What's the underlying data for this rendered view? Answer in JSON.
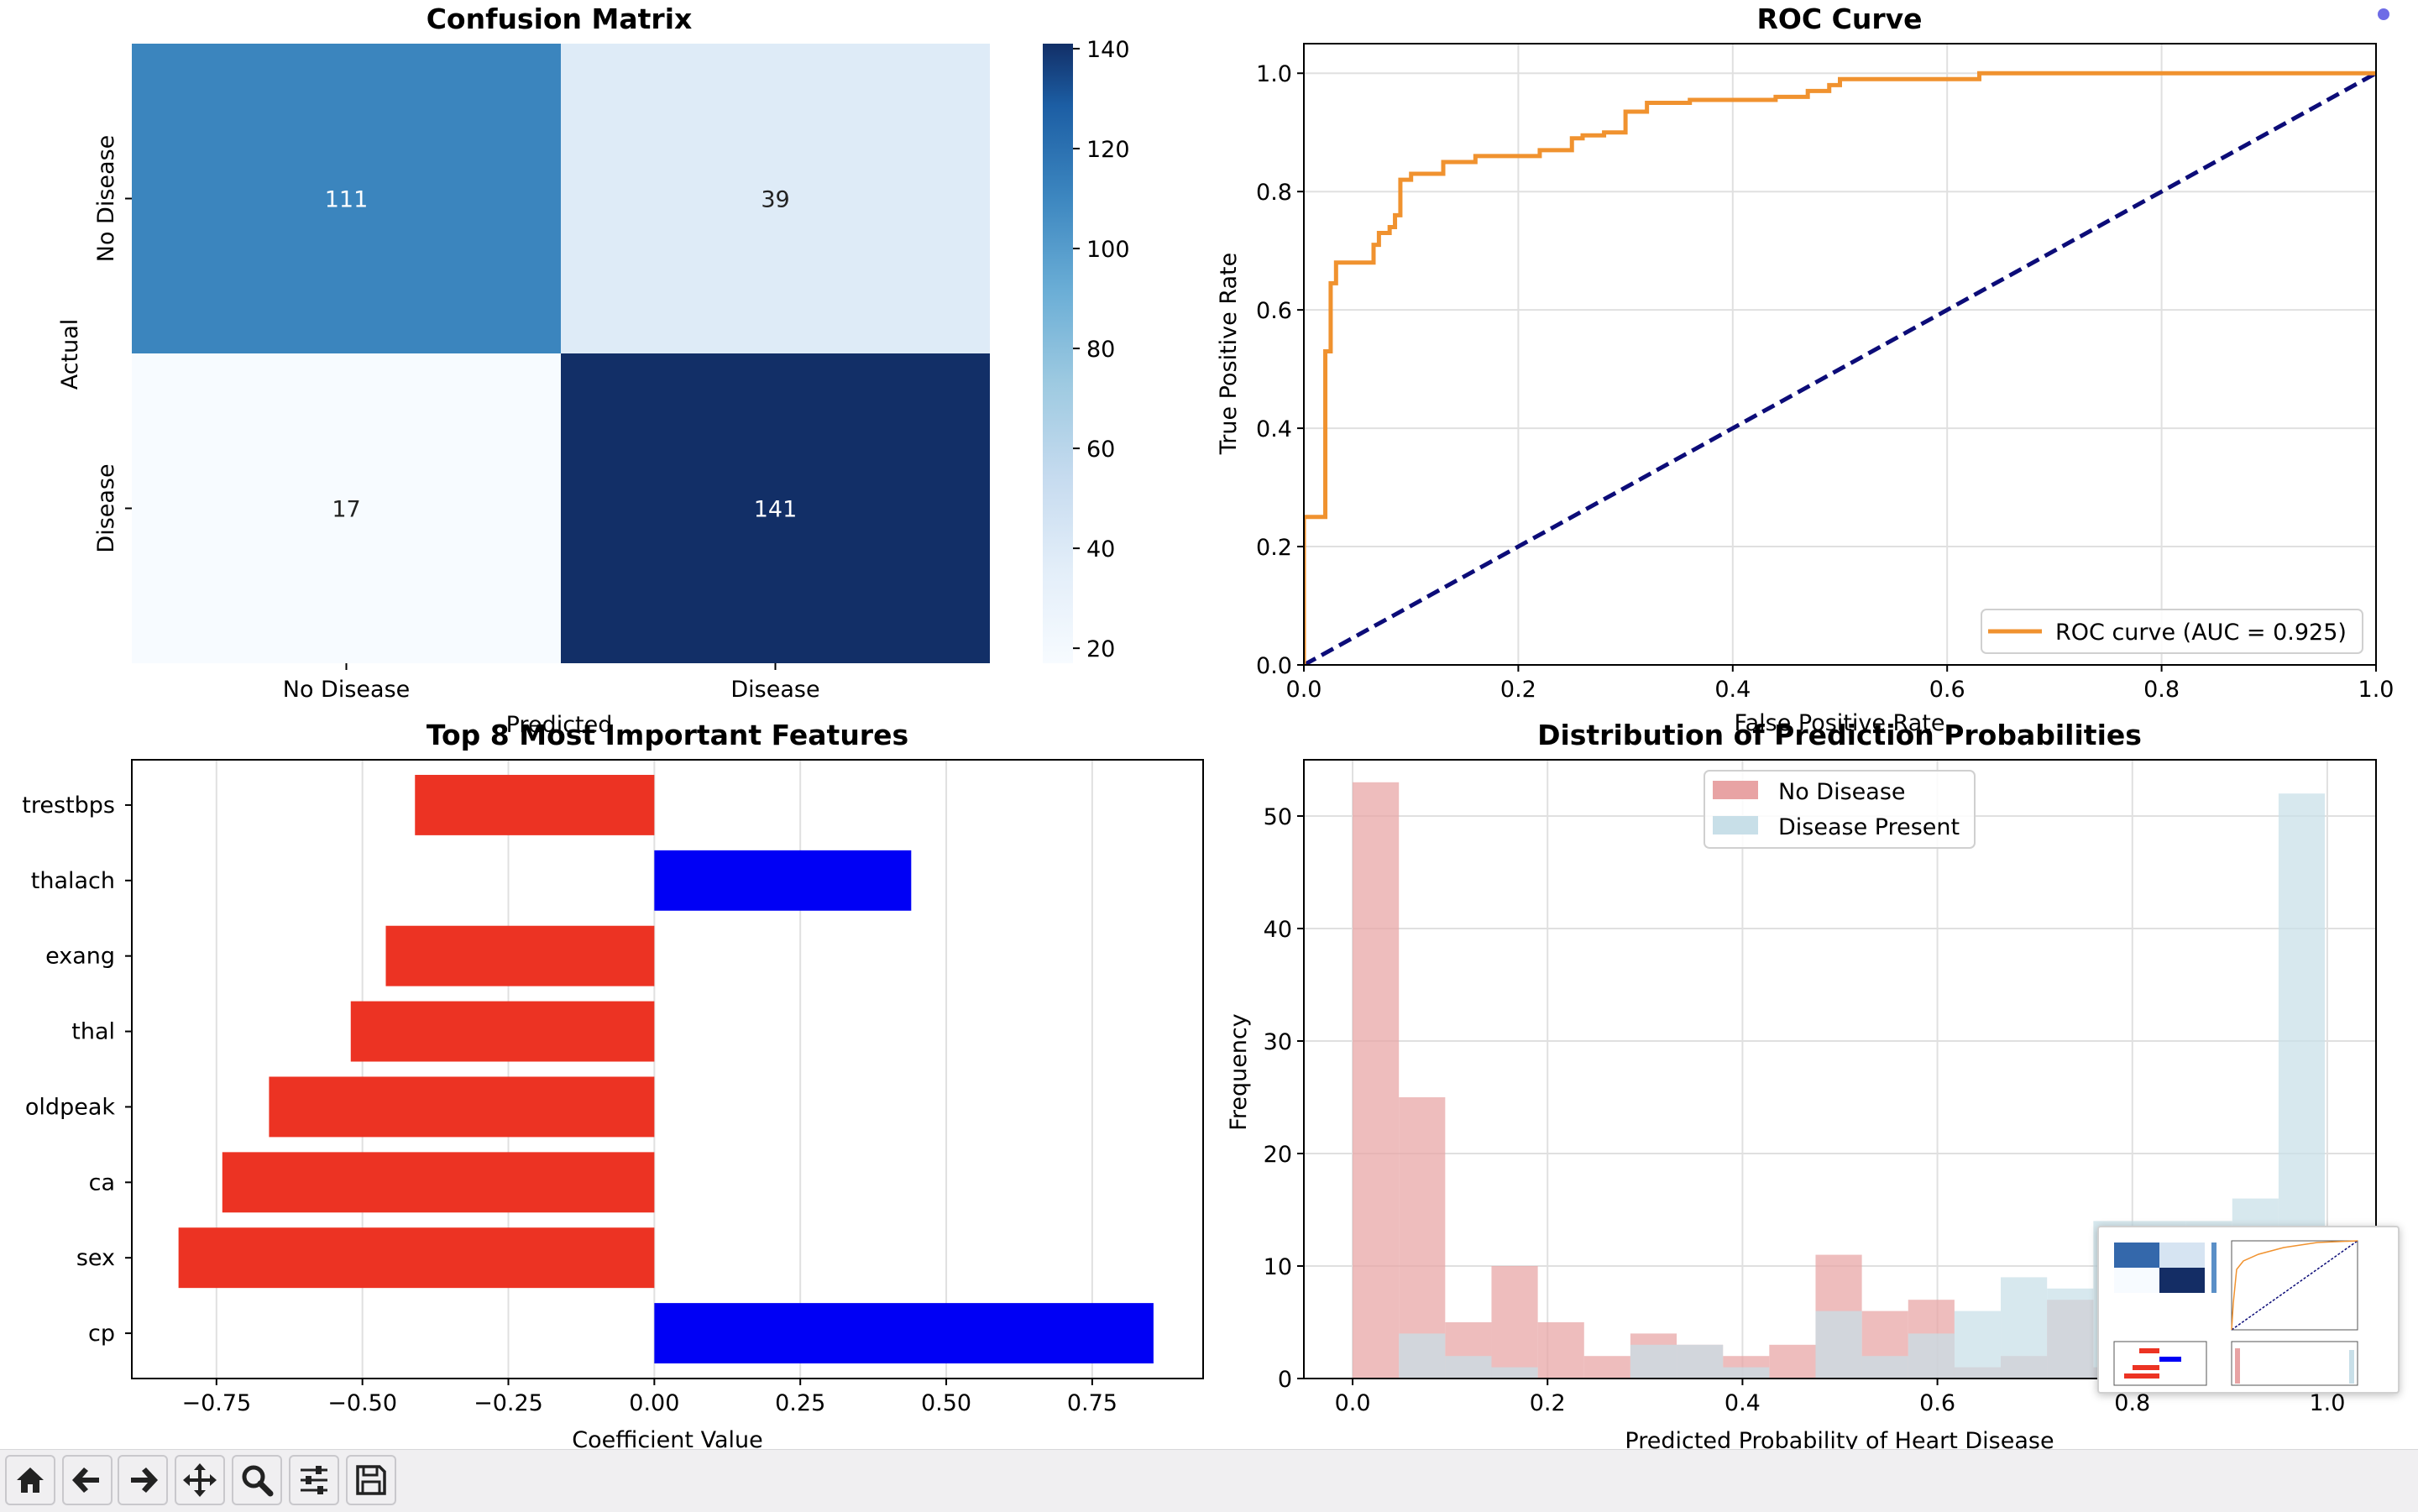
{
  "window": {
    "toolbar_tools": [
      "home-icon",
      "back-arrow-icon",
      "forward-arrow-icon",
      "pan-icon",
      "zoom-icon",
      "configure-subplots-icon",
      "save-icon"
    ]
  },
  "chart_data": [
    {
      "type": "heatmap",
      "title": "Confusion Matrix",
      "xlabel": "Predicted",
      "ylabel": "Actual",
      "x_categories": [
        "No Disease",
        "Disease"
      ],
      "y_categories": [
        "No Disease",
        "Disease"
      ],
      "matrix": [
        [
          111,
          39
        ],
        [
          17,
          141
        ]
      ],
      "colormap": "Blues",
      "colorbar_ticks": [
        "20",
        "40",
        "60",
        "80",
        "100",
        "120",
        "140"
      ],
      "colorbar_range": [
        17,
        141
      ]
    },
    {
      "type": "line",
      "title": "ROC Curve",
      "xlabel": "False Positive Rate",
      "ylabel": "True Positive Rate",
      "xlim": [
        0.0,
        1.0
      ],
      "ylim": [
        0.0,
        1.05
      ],
      "x_ticks": [
        "0.0",
        "0.2",
        "0.4",
        "0.6",
        "0.8",
        "1.0"
      ],
      "y_ticks": [
        "0.0",
        "0.2",
        "0.4",
        "0.6",
        "0.8",
        "1.0"
      ],
      "grid": true,
      "legend_position": "lower-right",
      "colors": {
        "roc": "#f0922f",
        "diagonal": "#0c0c78"
      },
      "series": [
        {
          "name": "ROC curve (AUC = 0.925)",
          "x": [
            0,
            0,
            0.02,
            0.02,
            0.025,
            0.025,
            0.03,
            0.03,
            0.035,
            0.035,
            0.065,
            0.065,
            0.07,
            0.07,
            0.08,
            0.08,
            0.085,
            0.085,
            0.09,
            0.09,
            0.1,
            0.1,
            0.13,
            0.13,
            0.16,
            0.16,
            0.22,
            0.22,
            0.25,
            0.25,
            0.26,
            0.26,
            0.28,
            0.28,
            0.3,
            0.3,
            0.32,
            0.32,
            0.36,
            0.36,
            0.44,
            0.44,
            0.47,
            0.47,
            0.49,
            0.49,
            0.5,
            0.5,
            0.63,
            0.63,
            1.0
          ],
          "y": [
            0,
            0.25,
            0.25,
            0.53,
            0.53,
            0.645,
            0.645,
            0.68,
            0.68,
            0.68,
            0.68,
            0.71,
            0.71,
            0.73,
            0.73,
            0.74,
            0.74,
            0.76,
            0.76,
            0.82,
            0.82,
            0.83,
            0.83,
            0.85,
            0.85,
            0.86,
            0.86,
            0.87,
            0.87,
            0.89,
            0.89,
            0.895,
            0.895,
            0.9,
            0.9,
            0.935,
            0.935,
            0.95,
            0.95,
            0.955,
            0.955,
            0.96,
            0.96,
            0.97,
            0.97,
            0.98,
            0.98,
            0.99,
            0.99,
            1.0,
            1.0
          ]
        },
        {
          "name": "",
          "x": [
            0,
            1
          ],
          "y": [
            0,
            1
          ]
        }
      ]
    },
    {
      "type": "bar",
      "orientation": "horizontal",
      "title": "Top 8 Most Important Features",
      "xlabel": "Coefficient Value",
      "ylabel": "",
      "categories": [
        "trestbps",
        "thalach",
        "exang",
        "thal",
        "oldpeak",
        "ca",
        "sex",
        "cp"
      ],
      "values": [
        -0.41,
        0.44,
        -0.46,
        -0.52,
        -0.66,
        -0.74,
        -0.815,
        0.855
      ],
      "xlim": [
        -0.895,
        0.94
      ],
      "x_ticks": [
        "−0.75",
        "−0.50",
        "−0.25",
        "0.00",
        "0.25",
        "0.50",
        "0.75"
      ],
      "grid": true,
      "colors": {
        "negative": "#ec3323",
        "positive": "#0000f5"
      }
    },
    {
      "type": "bar",
      "subtype": "histogram",
      "title": "Distribution of Prediction Probabilities",
      "xlabel": "Predicted Probability of Heart Disease",
      "ylabel": "Frequency",
      "xlim": [
        -0.05,
        1.05
      ],
      "ylim": [
        0,
        55
      ],
      "x_ticks": [
        "0.0",
        "0.2",
        "0.4",
        "0.6",
        "0.8",
        "1.0"
      ],
      "y_ticks": [
        "0",
        "10",
        "20",
        "30",
        "40",
        "50"
      ],
      "grid": true,
      "legend_position": "top-center",
      "bin_edges": [
        0.0,
        0.0475,
        0.095,
        0.1425,
        0.19,
        0.2375,
        0.285,
        0.3325,
        0.38,
        0.4275,
        0.475,
        0.5225,
        0.57,
        0.6175,
        0.665,
        0.7125,
        0.76,
        0.8075,
        0.855,
        0.9025,
        0.95,
        0.9975
      ],
      "series": [
        {
          "name": "No Disease",
          "color": "#e8a3a4",
          "values": [
            53,
            25,
            5,
            10,
            5,
            2,
            4,
            3,
            2,
            3,
            11,
            6,
            7,
            1,
            2,
            7,
            1,
            1,
            0,
            0,
            0
          ]
        },
        {
          "name": "Disease Present",
          "color": "#c8dfe8",
          "values": [
            0,
            4,
            2,
            1,
            0,
            0,
            3,
            3,
            1,
            0,
            6,
            2,
            4,
            6,
            9,
            8,
            14,
            14,
            14,
            16,
            52
          ]
        }
      ]
    }
  ]
}
